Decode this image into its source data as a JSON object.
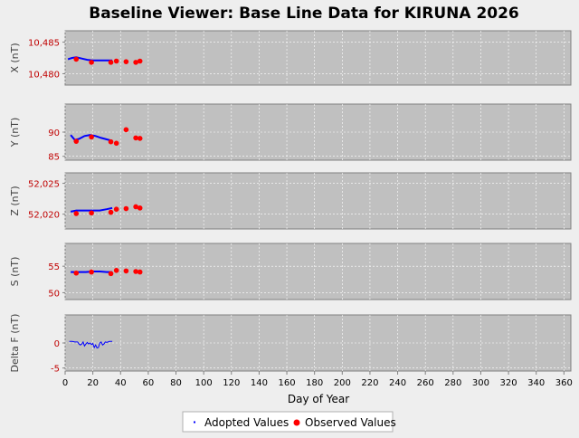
{
  "chart_data": {
    "type": "scatter",
    "title": "Baseline Viewer: Base Line Data for KIRUNA 2026",
    "xlabel": "Day of Year",
    "xlim": [
      0,
      365
    ],
    "x_ticks": [
      "0",
      "20",
      "40",
      "60",
      "80",
      "100",
      "120",
      "140",
      "160",
      "180",
      "200",
      "220",
      "240",
      "260",
      "280",
      "300",
      "320",
      "340",
      "360"
    ],
    "grid": true,
    "legend_position": "bottom-center",
    "legend": [
      {
        "label": "Adopted Values",
        "color": "#0000ff",
        "marker": "small-square"
      },
      {
        "label": "Observed Values",
        "color": "#ff0000",
        "marker": "circle"
      }
    ],
    "colors": {
      "adopted": "#0000ff",
      "observed": "#ff0000",
      "plot_bg": "#c0c0c0",
      "tick_red": "#c00000"
    },
    "panels": [
      {
        "ylabel": "X (nT)",
        "ylim": [
          10478.2,
          10486.8
        ],
        "yticks": [
          {
            "v": 10485,
            "label": "10,485"
          },
          {
            "v": 10480,
            "label": "10,480"
          }
        ],
        "adopted": [
          [
            2,
            10482.3
          ],
          [
            5,
            10482.5
          ],
          [
            8,
            10482.6
          ],
          [
            12,
            10482.4
          ],
          [
            16,
            10482.2
          ],
          [
            20,
            10482.1
          ],
          [
            25,
            10482.1
          ],
          [
            30,
            10482.1
          ],
          [
            34,
            10482.1
          ]
        ],
        "observed": [
          [
            8,
            10482.3
          ],
          [
            19,
            10481.8
          ],
          [
            33,
            10481.8
          ],
          [
            37,
            10482.0
          ],
          [
            44,
            10481.9
          ],
          [
            51,
            10481.8
          ],
          [
            54,
            10482.0
          ]
        ]
      },
      {
        "ylabel": "Y (nT)",
        "ylim": [
          84.2,
          95.8
        ],
        "yticks": [
          {
            "v": 90,
            "label": "90"
          },
          {
            "v": 85,
            "label": "85"
          }
        ],
        "adopted": [
          [
            4,
            89.4
          ],
          [
            7,
            88.4
          ],
          [
            10,
            88.6
          ],
          [
            14,
            89.2
          ],
          [
            18,
            89.4
          ],
          [
            22,
            89.2
          ],
          [
            26,
            88.8
          ],
          [
            30,
            88.5
          ],
          [
            34,
            88.2
          ]
        ],
        "observed": [
          [
            8,
            88.1
          ],
          [
            19,
            89.0
          ],
          [
            33,
            88.0
          ],
          [
            37,
            87.7
          ],
          [
            44,
            90.5
          ],
          [
            51,
            88.8
          ],
          [
            54,
            88.7
          ]
        ]
      },
      {
        "ylabel": "Z (nT)",
        "ylim": [
          52017.6,
          52026.7
        ],
        "yticks": [
          {
            "v": 52025,
            "label": "52,025"
          },
          {
            "v": 52020,
            "label": "52,020"
          }
        ],
        "adopted": [
          [
            4,
            52020.4
          ],
          [
            8,
            52020.6
          ],
          [
            15,
            52020.6
          ],
          [
            20,
            52020.6
          ],
          [
            25,
            52020.6
          ],
          [
            30,
            52020.8
          ],
          [
            34,
            52021.0
          ]
        ],
        "observed": [
          [
            8,
            52020.1
          ],
          [
            19,
            52020.2
          ],
          [
            33,
            52020.3
          ],
          [
            37,
            52020.8
          ],
          [
            44,
            52020.9
          ],
          [
            51,
            52021.2
          ],
          [
            54,
            52021.0
          ]
        ]
      },
      {
        "ylabel": "S (nT)",
        "ylim": [
          48.7,
          59.3
        ],
        "yticks": [
          {
            "v": 55,
            "label": "55"
          },
          {
            "v": 50,
            "label": "50"
          }
        ],
        "adopted": [
          [
            4,
            53.9
          ],
          [
            10,
            53.9
          ],
          [
            15,
            53.9
          ],
          [
            20,
            54.0
          ],
          [
            25,
            54.0
          ],
          [
            30,
            53.9
          ],
          [
            34,
            53.9
          ]
        ],
        "observed": [
          [
            8,
            53.7
          ],
          [
            19,
            53.9
          ],
          [
            33,
            53.6
          ],
          [
            37,
            54.2
          ],
          [
            44,
            54.1
          ],
          [
            51,
            54.0
          ],
          [
            54,
            53.9
          ]
        ]
      },
      {
        "ylabel": "Delta F (nT)",
        "ylim": [
          -5.6,
          5.6
        ],
        "yticks": [
          {
            "v": 0,
            "label": "0"
          },
          {
            "v": -5,
            "label": "-5"
          }
        ],
        "adopted": [
          [
            3,
            0.3
          ],
          [
            5,
            0.3
          ],
          [
            7,
            0.2
          ],
          [
            9,
            0.2
          ],
          [
            10,
            -0.2
          ],
          [
            11,
            -0.4
          ],
          [
            12,
            -0.2
          ],
          [
            13,
            0.2
          ],
          [
            14,
            -0.6
          ],
          [
            15,
            -0.2
          ],
          [
            16,
            0.1
          ],
          [
            17,
            -0.2
          ],
          [
            18,
            0.0
          ],
          [
            19,
            -0.3
          ],
          [
            20,
            -0.1
          ],
          [
            21,
            -0.9
          ],
          [
            22,
            -0.4
          ],
          [
            23,
            -1.0
          ],
          [
            24,
            -0.9
          ],
          [
            25,
            0.0
          ],
          [
            26,
            0.2
          ],
          [
            27,
            -0.4
          ],
          [
            28,
            -0.2
          ],
          [
            29,
            0.2
          ],
          [
            30,
            0.1
          ],
          [
            31,
            0.2
          ],
          [
            32,
            0.3
          ],
          [
            33,
            0.3
          ],
          [
            34,
            0.3
          ]
        ],
        "observed": []
      }
    ]
  }
}
